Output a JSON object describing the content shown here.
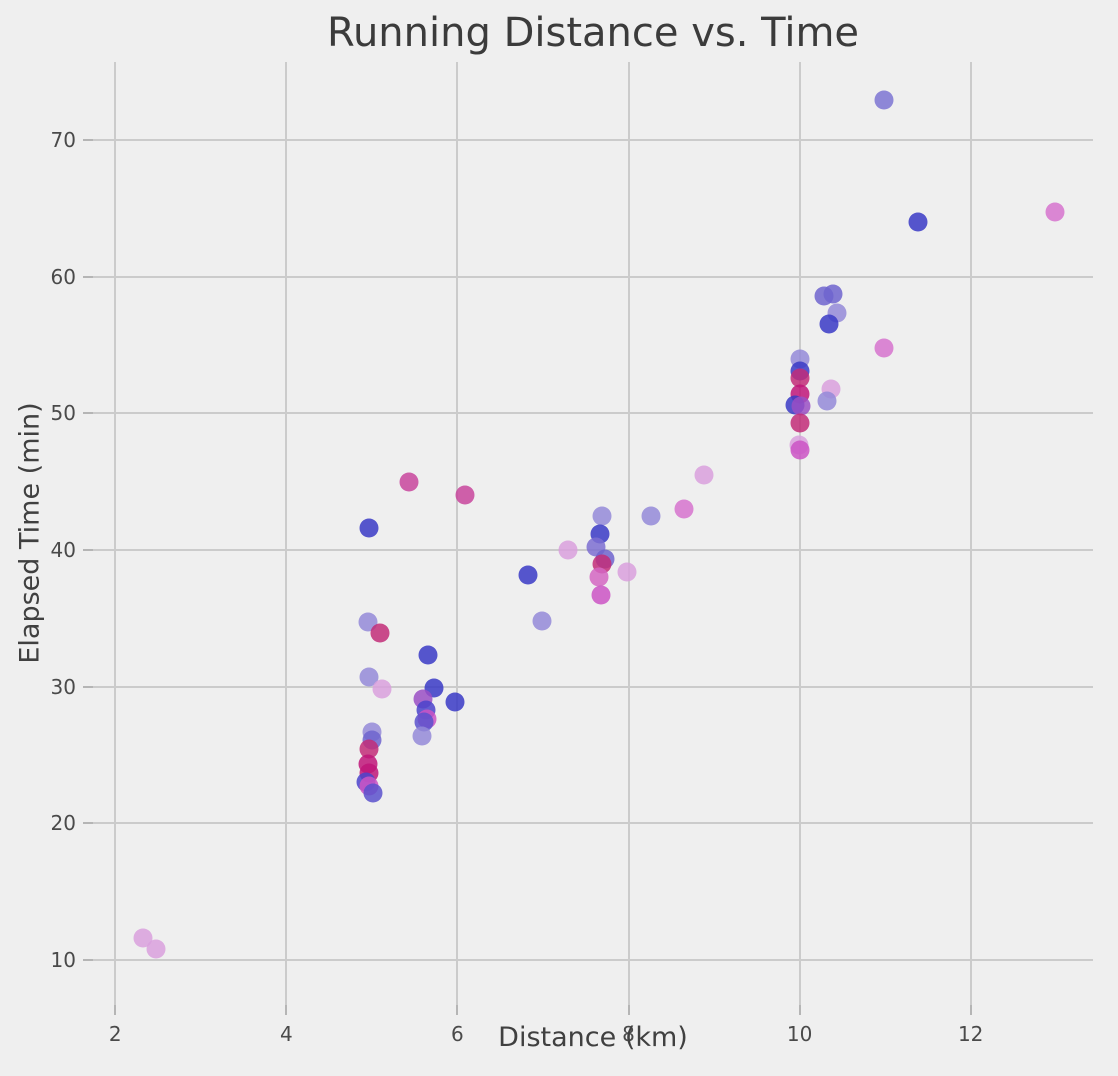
{
  "chart_data": {
    "type": "scatter",
    "title": "Running Distance vs. Time",
    "xlabel": "Distance (km)",
    "ylabel": "Elapsed Time (min)",
    "xlim": [
      1.74,
      13.43
    ],
    "ylim": [
      6.7,
      75.7
    ],
    "xticks": [
      2,
      4,
      6,
      8,
      10,
      12
    ],
    "yticks": [
      10,
      20,
      30,
      40,
      50,
      60,
      70
    ],
    "grid": true,
    "legend": false,
    "background_color": "#efefef",
    "gridline_color": "#cbcbcb",
    "marker_diameter_px": 19,
    "marker_opacity": 0.85,
    "points": [
      {
        "x": 2.32,
        "y": 11.6,
        "color": "#d9a0dd"
      },
      {
        "x": 2.48,
        "y": 10.8,
        "color": "#d9a0dd"
      },
      {
        "x": 4.97,
        "y": 41.6,
        "color": "#3a3ac6"
      },
      {
        "x": 5.43,
        "y": 45.0,
        "color": "#c8459c"
      },
      {
        "x": 6.09,
        "y": 44.0,
        "color": "#c8459c"
      },
      {
        "x": 4.96,
        "y": 34.7,
        "color": "#9489d8"
      },
      {
        "x": 5.1,
        "y": 33.9,
        "color": "#c22d78"
      },
      {
        "x": 4.97,
        "y": 30.7,
        "color": "#9489d8"
      },
      {
        "x": 5.12,
        "y": 29.8,
        "color": "#d9a0dd"
      },
      {
        "x": 5.66,
        "y": 32.3,
        "color": "#3a3ac6"
      },
      {
        "x": 5.73,
        "y": 29.9,
        "color": "#3a3ac6"
      },
      {
        "x": 5.6,
        "y": 29.1,
        "color": "#9a4fc4"
      },
      {
        "x": 5.97,
        "y": 28.9,
        "color": "#3a3ac6"
      },
      {
        "x": 5.63,
        "y": 28.3,
        "color": "#4a43cb"
      },
      {
        "x": 5.64,
        "y": 27.6,
        "color": "#cb54c4"
      },
      {
        "x": 5.61,
        "y": 27.4,
        "color": "#5b51cd"
      },
      {
        "x": 5.59,
        "y": 26.4,
        "color": "#9489d8"
      },
      {
        "x": 5.0,
        "y": 26.7,
        "color": "#9489d8"
      },
      {
        "x": 5.0,
        "y": 26.1,
        "color": "#6e64ce"
      },
      {
        "x": 4.97,
        "y": 25.4,
        "color": "#c22d78"
      },
      {
        "x": 4.96,
        "y": 24.3,
        "color": "#bf1579"
      },
      {
        "x": 4.97,
        "y": 23.7,
        "color": "#bf1579"
      },
      {
        "x": 4.93,
        "y": 23.0,
        "color": "#4a43cb"
      },
      {
        "x": 4.97,
        "y": 22.7,
        "color": "#cb54c4"
      },
      {
        "x": 5.01,
        "y": 22.2,
        "color": "#5b51cd"
      },
      {
        "x": 6.82,
        "y": 38.2,
        "color": "#3a3ac6"
      },
      {
        "x": 6.99,
        "y": 34.8,
        "color": "#9489d8"
      },
      {
        "x": 7.29,
        "y": 40.0,
        "color": "#d9a0dd"
      },
      {
        "x": 7.69,
        "y": 42.5,
        "color": "#9489d8"
      },
      {
        "x": 7.67,
        "y": 41.2,
        "color": "#3a3ac6"
      },
      {
        "x": 7.62,
        "y": 40.2,
        "color": "#7d6fd1"
      },
      {
        "x": 7.72,
        "y": 39.3,
        "color": "#6e64ce"
      },
      {
        "x": 7.69,
        "y": 39.0,
        "color": "#c22d78"
      },
      {
        "x": 7.65,
        "y": 38.0,
        "color": "#d466c2"
      },
      {
        "x": 7.98,
        "y": 38.4,
        "color": "#d9a0dd"
      },
      {
        "x": 7.68,
        "y": 36.7,
        "color": "#cb54c4"
      },
      {
        "x": 8.26,
        "y": 42.5,
        "color": "#9489d8"
      },
      {
        "x": 8.65,
        "y": 43.0,
        "color": "#d673ce"
      },
      {
        "x": 8.88,
        "y": 45.5,
        "color": "#d9a0dd"
      },
      {
        "x": 10.0,
        "y": 54.0,
        "color": "#9489d8"
      },
      {
        "x": 10.0,
        "y": 53.1,
        "color": "#3a3ac6"
      },
      {
        "x": 10.0,
        "y": 52.6,
        "color": "#c22d78"
      },
      {
        "x": 10.0,
        "y": 51.4,
        "color": "#bf1579"
      },
      {
        "x": 9.95,
        "y": 50.6,
        "color": "#3a3ac6"
      },
      {
        "x": 10.02,
        "y": 50.5,
        "color": "#9a4fc4"
      },
      {
        "x": 10.0,
        "y": 49.3,
        "color": "#c22d78"
      },
      {
        "x": 9.99,
        "y": 47.7,
        "color": "#d9a0dd"
      },
      {
        "x": 10.0,
        "y": 47.3,
        "color": "#cb54c4"
      },
      {
        "x": 10.37,
        "y": 51.8,
        "color": "#d9a0dd"
      },
      {
        "x": 10.32,
        "y": 50.9,
        "color": "#9489d8"
      },
      {
        "x": 10.28,
        "y": 58.6,
        "color": "#6e64ce"
      },
      {
        "x": 10.39,
        "y": 58.7,
        "color": "#6e64ce"
      },
      {
        "x": 10.44,
        "y": 57.3,
        "color": "#9489d8"
      },
      {
        "x": 10.34,
        "y": 56.5,
        "color": "#3a3ac6"
      },
      {
        "x": 10.99,
        "y": 54.8,
        "color": "#d673ce"
      },
      {
        "x": 10.99,
        "y": 72.9,
        "color": "#7d74d2"
      },
      {
        "x": 11.39,
        "y": 64.0,
        "color": "#3a3ac6"
      },
      {
        "x": 12.98,
        "y": 64.7,
        "color": "#d673ce"
      }
    ]
  }
}
